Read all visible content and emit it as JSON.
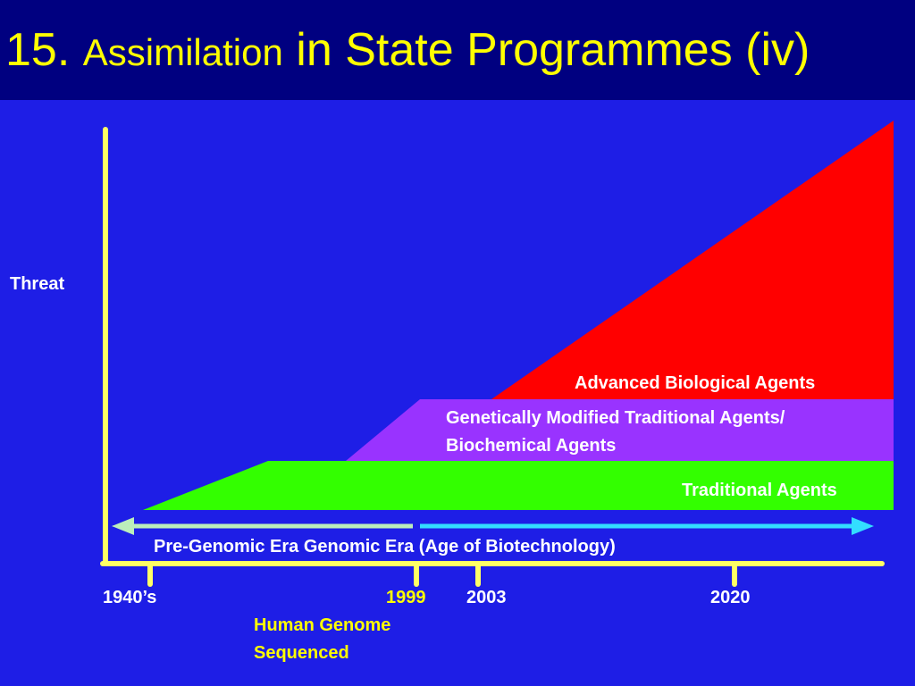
{
  "title": {
    "number": "15.",
    "word": "Assimilation",
    "rest": "in State Programmes (iv)"
  },
  "axis": {
    "y_label": "Threat",
    "ticks": [
      "1940’s",
      "1999",
      "2003",
      "2020"
    ]
  },
  "annotation": {
    "line1": "Human Genome",
    "line2": "Sequenced"
  },
  "eras": {
    "label": "Pre-Genomic Era Genomic Era (Age of Biotechnology)"
  },
  "layers": {
    "advanced": "Advanced Biological Agents",
    "modified_line1": "Genetically Modified Traditional Agents/",
    "modified_line2": "Biochemical Agents",
    "traditional": "Traditional Agents"
  },
  "colors": {
    "title_bg": "#000080",
    "panel_bg": "#1e1ee6",
    "title_text": "#ffff00",
    "axis": "#ffff66",
    "advanced": "#ff0000",
    "modified": "#9933ff",
    "traditional": "#33ff00",
    "pre_genomic_arrow": "#bbeebb",
    "genomic_arrow": "#33ddff",
    "label_text": "#ffffff",
    "highlight_text": "#ffff00"
  }
}
